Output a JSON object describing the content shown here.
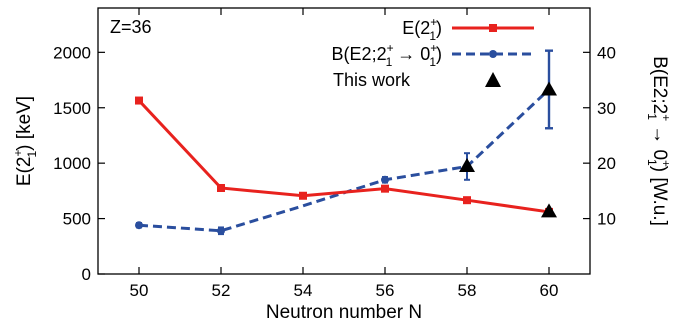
{
  "chart_data": {
    "type": "line",
    "annotation": "Z=36",
    "x": [
      50,
      52,
      54,
      56,
      58,
      60
    ],
    "xlabel": "Neutron number N",
    "xlim": [
      49,
      61
    ],
    "x_ticks": [
      "50",
      "52",
      "54",
      "56",
      "58",
      "60"
    ],
    "ylabel_left": {
      "base": "E(2",
      "sup": "+",
      "sub": "1",
      "tail": ") [keV]"
    },
    "ylim_left": [
      0,
      2400
    ],
    "y_ticks_left": [
      "0",
      "500",
      "1000",
      "1500",
      "2000"
    ],
    "ylabel_right": {
      "base": "B(E2;2",
      "sup": "+",
      "sub": "1",
      "arrow": " → 0",
      "sup2": "+",
      "sub2": "1",
      "tail": ") [W.u.]"
    },
    "ylim_right": [
      0,
      48
    ],
    "y_ticks_right": [
      "10",
      "20",
      "30",
      "40"
    ],
    "series": [
      {
        "name": {
          "base": "E(2",
          "sup": "+",
          "sub": "1",
          "tail": ")"
        },
        "axis": "left",
        "color": "#e8221e",
        "style": "solid",
        "marker": "square",
        "x": [
          50,
          52,
          54,
          56,
          58,
          60
        ],
        "y": [
          1565,
          776,
          706,
          770,
          666,
          560
        ]
      },
      {
        "name": {
          "base": "B(E2;2",
          "sup": "+",
          "sub": "1",
          "arrow": " → 0",
          "sup2": "+",
          "sub2": "1",
          "tail": ")"
        },
        "axis": "right",
        "color": "#2a4e9e",
        "style": "dashed",
        "marker": "circle",
        "x": [
          50,
          52,
          54,
          56,
          58
        ],
        "y": [
          8.8,
          7.8,
          12.3,
          17,
          19.4
        ],
        "yerr": [
          0.4,
          0.6,
          0,
          0.5,
          2.4
        ],
        "marker_visible": [
          true,
          true,
          false,
          true,
          true
        ]
      },
      {
        "name": "This work",
        "axis": "right",
        "color": "#000000",
        "style": "none",
        "marker": "triangle",
        "x": [
          58,
          60,
          60
        ],
        "y": [
          19.5,
          33.3,
          11.3
        ],
        "yerr": [
          0,
          7,
          0
        ],
        "link_to_previous": true
      }
    ],
    "legend_position": "top-right",
    "grid": false
  }
}
